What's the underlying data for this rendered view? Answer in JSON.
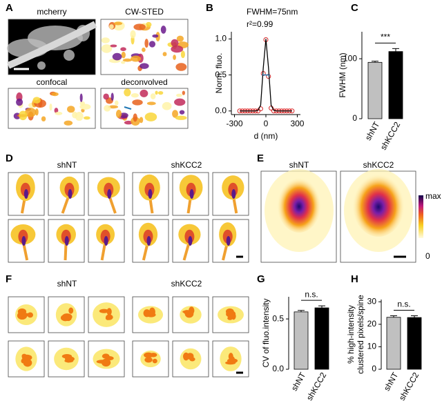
{
  "panels": {
    "letters": [
      "A",
      "B",
      "C",
      "D",
      "E",
      "F",
      "G",
      "H"
    ],
    "A": {
      "images": [
        "mcherry",
        "CW-STED",
        "confocal",
        "deconvolved"
      ]
    },
    "D": {
      "groups": [
        "shNT",
        "shKCC2"
      ]
    },
    "E": {
      "groups": [
        "shNT",
        "shKCC2"
      ],
      "colorbar": [
        "max",
        "0"
      ]
    },
    "F": {
      "groups": [
        "shNT",
        "shKCC2"
      ]
    }
  },
  "chart_data": [
    {
      "type": "scatter",
      "annotations": [
        "FWHM=75nm",
        "r²=0.99"
      ],
      "xlabel": "d (nm)",
      "ylabel": "Norm. fluo.",
      "x": [
        -250,
        -225,
        -200,
        -175,
        -150,
        -125,
        -100,
        -75,
        -50,
        -25,
        0,
        25,
        50,
        75,
        100,
        125,
        150,
        175,
        200,
        225,
        250
      ],
      "series": [
        {
          "color": "#d62728",
          "marker": "circle",
          "values": [
            0,
            0,
            0,
            0,
            0,
            0,
            0,
            0,
            0.03,
            0.52,
            0.99,
            0.48,
            0.04,
            0,
            0,
            0,
            0,
            0,
            0,
            0,
            0
          ]
        },
        {
          "color": "#000000",
          "marker": "line",
          "values": [
            0,
            0,
            0,
            0,
            0,
            0,
            0,
            0.01,
            0.08,
            0.6,
            1,
            0.6,
            0.08,
            0.01,
            0,
            0,
            0,
            0,
            0,
            0,
            0
          ]
        }
      ],
      "hline": {
        "x": [
          -37.5,
          37.5
        ],
        "y": 0.5,
        "color": "#1f77b4"
      },
      "xlim": [
        -330,
        330
      ],
      "ylim": [
        -0.05,
        1.1
      ],
      "xticks": [
        -300,
        0,
        300
      ],
      "yticks": [
        {
          "value": 0,
          "label": "0.0"
        },
        {
          "value": 0.5,
          "label": "0.5"
        },
        {
          "value": 1,
          "label": "1.0"
        }
      ]
    },
    {
      "type": "bar",
      "categories": [
        "shNT",
        "shKCC2"
      ],
      "values": [
        94,
        112
      ],
      "errors": [
        2,
        5
      ],
      "colors": [
        "#c0c0c0",
        "#000000"
      ],
      "ylabel": "FWHM (nm)",
      "significance": "***",
      "ylim": [
        0,
        145
      ],
      "yticks": [
        0,
        100
      ]
    },
    {
      "type": "bar",
      "categories": [
        "shNT",
        "shKCC2"
      ],
      "values": [
        0.57,
        0.61
      ],
      "errors": [
        0.015,
        0.02
      ],
      "colors": [
        "#c0c0c0",
        "#000000"
      ],
      "ylabel": "CV of fluo.intensity",
      "significance": "n.s.",
      "ylim": [
        0,
        0.72
      ],
      "yticks": [
        {
          "value": 0,
          "label": "0.0"
        },
        {
          "value": 0.5,
          "label": "0.5"
        }
      ]
    },
    {
      "type": "bar",
      "categories": [
        "shNT",
        "shKCC2"
      ],
      "values": [
        23.1,
        23.0
      ],
      "errors": [
        0.7,
        0.8
      ],
      "colors": [
        "#c0c0c0",
        "#000000"
      ],
      "ylabel": [
        "% high-intensity",
        "clustered pixels/spine"
      ],
      "significance": "n.s.",
      "ylim": [
        0,
        31
      ],
      "yticks": [
        0,
        10,
        20,
        30
      ]
    }
  ]
}
